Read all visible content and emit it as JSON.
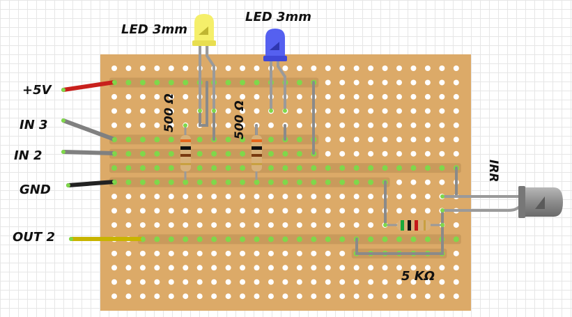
{
  "labels": {
    "led_yellow": "LED 3mm",
    "led_blue": "LED 3mm",
    "res1": "500 Ω",
    "res2": "500 Ω",
    "plus5v": "+5V",
    "in3": "IN 3",
    "in2": "IN 2",
    "gnd": "GND",
    "out2": "OUT 2",
    "irr": "IRR",
    "res5k": "5 KΩ"
  },
  "colors": {
    "board": "#dcaa68",
    "strip": "#c99a5c",
    "hole": "#ffffff",
    "hole_active": "#7fd84a",
    "wire_red": "#c8201c",
    "wire_grey": "#808080",
    "wire_black": "#222222",
    "wire_yellow": "#c8b400",
    "led_yellow": "#f5ef6a",
    "led_blue": "#5560f0",
    "irr_body": "#8a8a8a"
  }
}
